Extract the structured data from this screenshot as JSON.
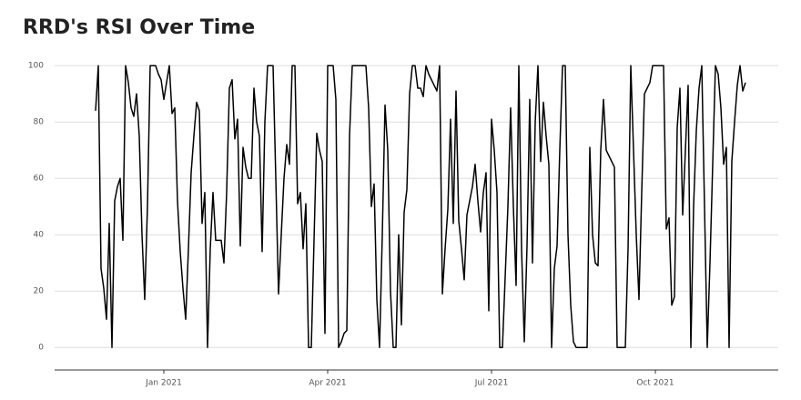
{
  "chart_data": {
    "type": "line",
    "title": "RRD's RSI Over Time",
    "categories": [
      null,
      null,
      null,
      null,
      null,
      null,
      null,
      null,
      null,
      null,
      null,
      null,
      null,
      null,
      null,
      null,
      null,
      null,
      null,
      null,
      null,
      null,
      null,
      null,
      null,
      "Jan 2021",
      null,
      null,
      null,
      null,
      null,
      null,
      null,
      null,
      null,
      null,
      null,
      null,
      null,
      null,
      null,
      null,
      null,
      null,
      null,
      null,
      null,
      null,
      null,
      null,
      null,
      null,
      null,
      null,
      null,
      null,
      null,
      null,
      null,
      null,
      null,
      null,
      null,
      null,
      null,
      null,
      null,
      null,
      null,
      null,
      null,
      null,
      null,
      null,
      null,
      null,
      null,
      null,
      null,
      null,
      null,
      null,
      null,
      null,
      null,
      "Apr 2021",
      null,
      null,
      null,
      null,
      null,
      null,
      null,
      null,
      null,
      null,
      null,
      null,
      null,
      null,
      null,
      null,
      null,
      null,
      null,
      null,
      null,
      null,
      null,
      null,
      null,
      null,
      null,
      null,
      null,
      null,
      null,
      null,
      null,
      null,
      null,
      null,
      null,
      null,
      null,
      null,
      null,
      null,
      null,
      null,
      null,
      null,
      null,
      null,
      null,
      null,
      null,
      null,
      null,
      null,
      null,
      null,
      null,
      null,
      null,
      "Jul 2021",
      null,
      null,
      null,
      null,
      null,
      null,
      null,
      null,
      null,
      null,
      null,
      null,
      null,
      null,
      null,
      null,
      null,
      null,
      null,
      null,
      null,
      null,
      null,
      null,
      null,
      null,
      null,
      null,
      null,
      null,
      null,
      null,
      null,
      null,
      null,
      null,
      null,
      null,
      null,
      null,
      null,
      null,
      null,
      null,
      null,
      null,
      null,
      null,
      null,
      null,
      null,
      null,
      null,
      null,
      null,
      null,
      null,
      null,
      null,
      "Oct 2021",
      null,
      null,
      null,
      null,
      null,
      null,
      null,
      null,
      null,
      null,
      null,
      null,
      null,
      null,
      null,
      null,
      null,
      null,
      null,
      null,
      null,
      null,
      null,
      null,
      null,
      null,
      null,
      null,
      null,
      null,
      null,
      null,
      null
    ],
    "values": [
      84,
      100,
      28,
      21,
      10,
      44,
      0,
      52,
      57,
      60,
      38,
      100,
      94,
      85,
      82,
      90,
      75,
      40,
      17,
      50,
      100,
      100,
      100,
      97,
      95,
      88,
      94,
      100,
      83,
      85,
      52,
      34,
      21,
      10,
      35,
      62,
      75,
      87,
      84,
      44,
      55,
      0,
      35,
      55,
      38,
      38,
      38,
      30,
      55,
      92,
      95,
      74,
      81,
      36,
      71,
      64,
      60,
      60,
      92,
      80,
      75,
      34,
      80,
      100,
      100,
      100,
      60,
      19,
      40,
      60,
      72,
      65,
      100,
      100,
      51,
      55,
      35,
      51,
      0,
      0,
      38,
      76,
      70,
      66,
      5,
      100,
      100,
      100,
      88,
      0,
      2,
      5,
      6,
      75,
      100,
      100,
      100,
      100,
      100,
      100,
      85,
      50,
      58,
      17,
      0,
      40,
      86,
      70,
      20,
      0,
      0,
      40,
      8,
      48,
      56,
      90,
      100,
      100,
      92,
      92,
      89,
      100,
      97,
      95,
      93,
      91,
      100,
      19,
      35,
      49,
      81,
      44,
      91,
      45,
      35,
      24,
      47,
      52,
      57,
      65,
      52,
      41,
      55,
      62,
      13,
      81,
      70,
      55,
      0,
      0,
      25,
      50,
      85,
      50,
      22,
      100,
      35,
      2,
      36,
      88,
      30,
      80,
      100,
      66,
      87,
      75,
      65,
      0,
      28,
      36,
      70,
      100,
      100,
      40,
      15,
      2,
      0,
      0,
      0,
      0,
      0,
      71,
      40,
      30,
      29,
      70,
      88,
      70,
      68,
      66,
      64,
      0,
      0,
      0,
      0,
      35,
      100,
      70,
      40,
      17,
      55,
      90,
      92,
      94,
      100,
      100,
      100,
      100,
      100,
      42,
      46,
      15,
      18,
      78,
      92,
      47,
      70,
      93,
      0,
      50,
      77,
      92,
      100,
      50,
      0,
      30,
      65,
      100,
      97,
      85,
      65,
      71,
      0,
      66,
      80,
      93,
      100,
      91,
      94
    ],
    "color": "#000000",
    "ylim": [
      -8,
      102
    ],
    "yticks": [
      0,
      20,
      40,
      60,
      80,
      100
    ],
    "grid": true
  }
}
